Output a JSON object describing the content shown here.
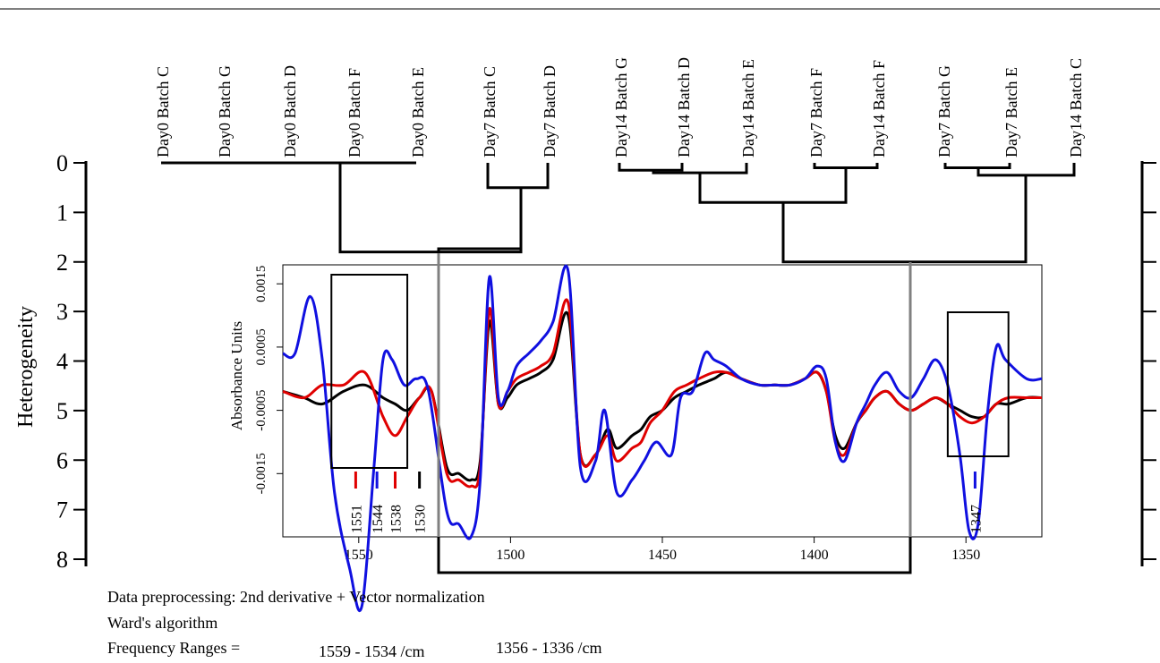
{
  "chart_data": [
    {
      "type": "dendrogram",
      "ylabel": "Heterogeneity",
      "y_ticks": [
        "0",
        "1",
        "2",
        "3",
        "4",
        "5",
        "6",
        "7",
        "8"
      ],
      "ylim": [
        0,
        8
      ],
      "leaves": [
        "Day0 Batch C",
        "Day0 Batch G",
        "Day0 Batch D",
        "Day0  Batch F",
        "Day0 Batch E",
        "Day7  Batch C",
        "Day7  Batch D",
        "Day14 Batch G",
        "Day14 Batch D",
        "Day14  Batch E",
        "Day7  Batch F",
        "Day14  Batch F",
        "Day7  Batch G",
        "Day7  Batch E",
        "Day14 Batch C"
      ],
      "merges": [
        {
          "left": "Day0 Batch G",
          "right": "Day0 Batch D",
          "height": 0.0
        },
        {
          "left": "Day0  Batch F",
          "right": "Day0 Batch E",
          "height": 0.0
        },
        {
          "left": "Day0 Batch C",
          "right": "Day0 Batch G+D+F+E",
          "height": 0.0
        },
        {
          "left": "Day7  Batch C",
          "right": "Day7  Batch D",
          "height": 0.5
        },
        {
          "left": "Day0 cluster",
          "right": "Day7 C+D",
          "height": 1.8
        },
        {
          "left": "Day14 Batch G",
          "right": "Day14 Batch D",
          "height": 0.15
        },
        {
          "left": "Day14 G+D",
          "right": "Day14  Batch E",
          "height": 0.2
        },
        {
          "left": "Day7  Batch F",
          "right": "Day14  Batch F",
          "height": 0.1
        },
        {
          "left": "Day14 G+D+E",
          "right": "Day7 F + Day14 F",
          "height": 0.8
        },
        {
          "left": "Day7  Batch G",
          "right": "Day7  Batch E",
          "height": 0.1
        },
        {
          "left": "Day7 G+E",
          "right": "Day14 Batch C",
          "height": 0.25
        },
        {
          "left": "left group",
          "right": "right group",
          "height": 2.0
        }
      ],
      "notes": [
        "Data preprocessing:  2nd derivative + Vector normalization",
        "Ward's algorithm",
        "Frequency Ranges =",
        "1559 - 1534 /cm",
        "1356 - 1336 /cm"
      ]
    },
    {
      "type": "line",
      "ylabel": "Absorbance Units",
      "y_ticks": [
        "-0.0015",
        "-0.0005",
        "0.0005",
        "0.0015"
      ],
      "ylim": [
        -0.0025,
        0.0018
      ],
      "x_ticks": [
        "1550",
        "1500",
        "1450",
        "1400",
        "1350"
      ],
      "xlim": [
        1575,
        1325
      ],
      "x_reversed": true,
      "series": [
        {
          "color": "#000000",
          "x": [
            1575,
            1568,
            1562,
            1555,
            1548,
            1542,
            1538,
            1534,
            1530,
            1526,
            1521,
            1517,
            1513,
            1510,
            1507,
            1504,
            1501,
            1498,
            1494,
            1490,
            1486,
            1481,
            1477,
            1472,
            1468,
            1465,
            1460,
            1457,
            1454,
            1450,
            1446,
            1442,
            1438,
            1433,
            1429,
            1424,
            1418,
            1413,
            1408,
            1403,
            1399,
            1396,
            1393,
            1390,
            1386,
            1383,
            1380,
            1376,
            1372,
            1368,
            1364,
            1360,
            1356,
            1352,
            1348,
            1344,
            1340,
            1336,
            1330,
            1325
          ],
          "y": [
            -0.0002,
            -0.0003,
            -0.0004,
            -0.0002,
            -0.0001,
            -0.0003,
            -0.0004,
            -0.0005,
            -0.0003,
            -0.0002,
            -0.0014,
            -0.0015,
            -0.0016,
            -0.0013,
            0.0009,
            -0.0004,
            -0.0003,
            -0.0001,
            0.0,
            0.0001,
            0.0003,
            0.001,
            -0.0012,
            -0.0012,
            -0.0008,
            -0.0011,
            -0.0009,
            -0.0008,
            -0.0006,
            -0.0005,
            -0.0003,
            -0.0002,
            -0.0001,
            0.0,
            0.0001,
            0.0,
            -0.0001,
            -0.0001,
            -0.0001,
            0.0,
            0.0001,
            -0.0002,
            -0.0009,
            -0.0011,
            -0.0007,
            -0.0005,
            -0.0003,
            -0.0002,
            -0.0004,
            -0.0005,
            -0.0004,
            -0.0003,
            -0.0004,
            -0.0005,
            -0.0006,
            -0.0006,
            -0.0004,
            -0.0004,
            -0.0003,
            -0.0003
          ]
        },
        {
          "color": "#e00000",
          "x": [
            1575,
            1568,
            1562,
            1555,
            1548,
            1542,
            1538,
            1534,
            1530,
            1526,
            1521,
            1517,
            1513,
            1510,
            1507,
            1504,
            1501,
            1498,
            1494,
            1490,
            1486,
            1481,
            1477,
            1472,
            1468,
            1465,
            1460,
            1457,
            1454,
            1450,
            1446,
            1442,
            1438,
            1433,
            1429,
            1424,
            1418,
            1413,
            1408,
            1403,
            1399,
            1396,
            1393,
            1390,
            1386,
            1383,
            1380,
            1376,
            1372,
            1368,
            1364,
            1360,
            1356,
            1352,
            1348,
            1344,
            1340,
            1336,
            1330,
            1325
          ],
          "y": [
            -0.0002,
            -0.0003,
            -0.0001,
            -0.0001,
            0.0001,
            -0.0006,
            -0.0009,
            -0.0006,
            -0.0003,
            -0.0002,
            -0.0015,
            -0.0016,
            -0.0017,
            -0.0014,
            0.0011,
            -0.0004,
            -0.0002,
            0.0,
            0.0001,
            0.0002,
            0.0004,
            0.0012,
            -0.0012,
            -0.0012,
            -0.0009,
            -0.0013,
            -0.0011,
            -0.001,
            -0.0007,
            -0.0005,
            -0.0002,
            -0.0001,
            0.0,
            0.0001,
            0.0001,
            0.0,
            -0.0001,
            -0.0001,
            -0.0001,
            0.0,
            0.0001,
            -0.0002,
            -0.001,
            -0.0012,
            -0.0007,
            -0.0005,
            -0.0003,
            -0.0002,
            -0.0004,
            -0.0005,
            -0.0004,
            -0.0003,
            -0.0004,
            -0.0006,
            -0.0007,
            -0.0006,
            -0.0004,
            -0.0003,
            -0.0003,
            -0.0003
          ]
        },
        {
          "color": "#1010e0",
          "x": [
            1575,
            1571,
            1566,
            1562,
            1558,
            1553,
            1549,
            1545,
            1542,
            1539,
            1535,
            1531,
            1527,
            1521,
            1517,
            1513,
            1510,
            1507,
            1504,
            1501,
            1498,
            1494,
            1490,
            1486,
            1481,
            1477,
            1472,
            1469,
            1465,
            1460,
            1456,
            1452,
            1447,
            1444,
            1440,
            1436,
            1433,
            1429,
            1424,
            1418,
            1413,
            1408,
            1403,
            1399,
            1396,
            1393,
            1390,
            1386,
            1383,
            1380,
            1376,
            1372,
            1368,
            1364,
            1360,
            1356,
            1352,
            1349,
            1346,
            1343,
            1340,
            1337,
            1330,
            1325
          ],
          "y": [
            0.0004,
            0.0004,
            0.0013,
            0.0003,
            -0.0018,
            -0.003,
            -0.0036,
            -0.0014,
            0.0003,
            0.0003,
            -0.0001,
            0.0,
            -0.0002,
            -0.0021,
            -0.0023,
            -0.0025,
            -0.0016,
            0.0016,
            -0.0003,
            -0.0002,
            0.0002,
            0.0004,
            0.0006,
            0.0009,
            0.0017,
            -0.0014,
            -0.0013,
            -0.0005,
            -0.0018,
            -0.0016,
            -0.0013,
            -0.001,
            -0.0012,
            -0.0003,
            -0.0002,
            0.0004,
            0.0003,
            0.0002,
            0.0,
            -0.0001,
            -0.0001,
            -0.0001,
            0.0,
            0.0002,
            0.0,
            -0.001,
            -0.0013,
            -0.0007,
            -0.0004,
            -0.0001,
            0.0001,
            -0.0002,
            -0.0003,
            0.0,
            0.0003,
            -0.0001,
            -0.0012,
            -0.0024,
            -0.0023,
            -0.0006,
            0.0005,
            0.0003,
            0.0,
            0.0
          ]
        }
      ],
      "boxes": [
        {
          "x_range": [
            1559,
            1534
          ]
        },
        {
          "x_range": [
            1356,
            1336
          ]
        }
      ],
      "markers": [
        {
          "x": 1551,
          "label": "1551",
          "color": "#e00000"
        },
        {
          "x": 1544,
          "label": "1544",
          "color": "#1010e0"
        },
        {
          "x": 1538,
          "label": "1538",
          "color": "#e00000"
        },
        {
          "x": 1530,
          "label": "1530",
          "color": "#000000"
        },
        {
          "x": 1347,
          "label": "1347",
          "color": "#1010e0"
        }
      ]
    }
  ]
}
